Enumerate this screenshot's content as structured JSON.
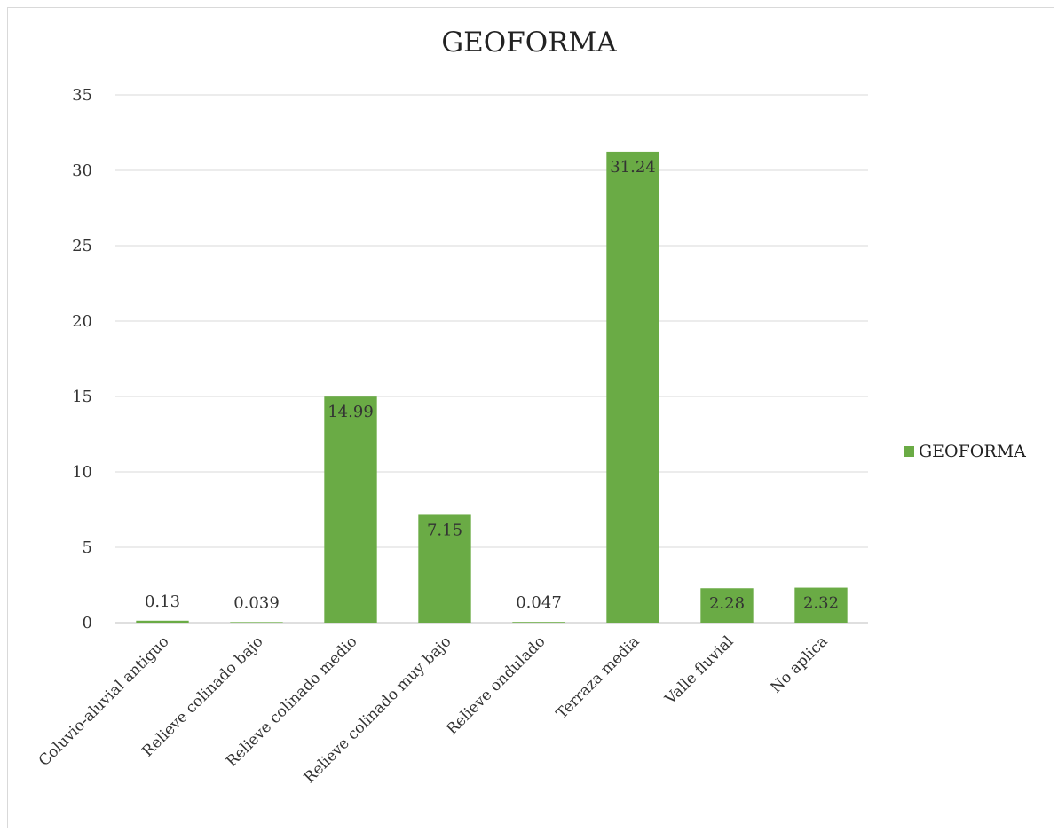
{
  "chart_data": {
    "type": "bar",
    "title": "GEOFORMA",
    "categories": [
      "Coluvio-aluvial antiguo",
      "Relieve colinado bajo",
      "Relieve colinado medio",
      "Relieve colinado muy bajo",
      "Relieve ondulado",
      "Terraza media",
      "Valle fluvial",
      "No aplica"
    ],
    "series": [
      {
        "name": "GEOFORMA",
        "values": [
          0.13,
          0.039,
          14.99,
          7.15,
          0.047,
          31.24,
          2.28,
          2.32
        ],
        "labels": [
          "0.13",
          "0.039",
          "14.99",
          "7.15",
          "0.047",
          "31.24",
          "2.28",
          "2.32"
        ],
        "color": "#6aab45"
      }
    ],
    "ylim": [
      0,
      35
    ],
    "yticks": [
      0,
      5,
      10,
      15,
      20,
      25,
      30,
      35
    ],
    "grid": true,
    "legend": "right"
  }
}
